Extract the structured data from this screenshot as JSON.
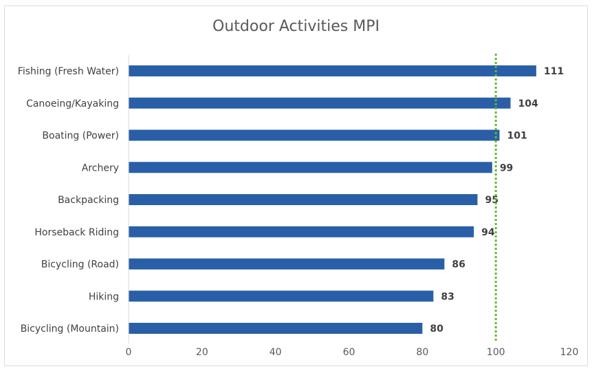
{
  "chart_data": {
    "type": "bar",
    "orientation": "horizontal",
    "title": "Outdoor Activities MPI",
    "categories": [
      "Fishing (Fresh Water)",
      "Canoeing/Kayaking",
      "Boating (Power)",
      "Archery",
      "Backpacking",
      "Horseback Riding",
      "Bicycling (Road)",
      "Hiking",
      "Bicycling (Mountain)"
    ],
    "values": [
      111,
      104,
      101,
      99,
      95,
      94,
      86,
      83,
      80
    ],
    "xlim": [
      0,
      120
    ],
    "xticks": [
      0,
      20,
      40,
      60,
      80,
      100,
      120
    ],
    "reference_line": {
      "value": 100,
      "color": "#5bbd2f",
      "style": "dotted"
    },
    "bar_color": "#2a5fa8",
    "grid": false,
    "legend": "none"
  }
}
